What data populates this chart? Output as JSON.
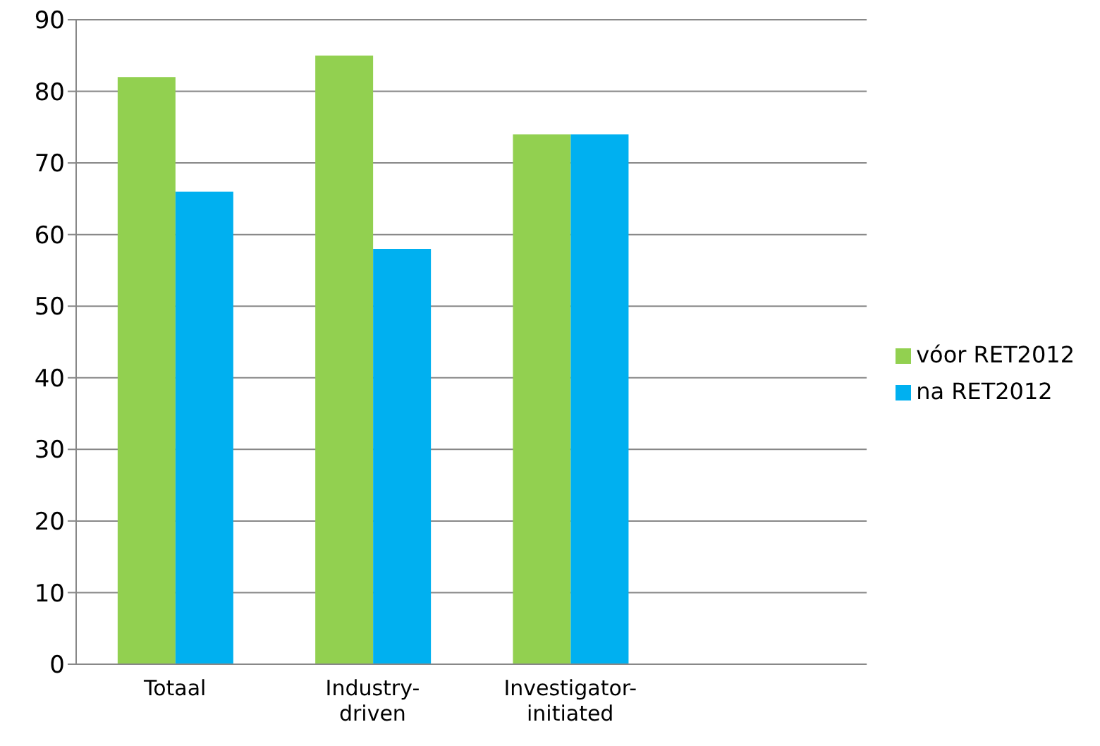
{
  "chart_data": {
    "type": "bar",
    "categories": [
      "Totaal",
      "Industry-driven",
      "Investigator-initiated",
      null
    ],
    "series": [
      {
        "name": "vóor RET2012",
        "color": "#92d050",
        "values": [
          82,
          85,
          74,
          null
        ]
      },
      {
        "name": "na RET2012",
        "color": "#00b0f0",
        "values": [
          66,
          58,
          74,
          null
        ]
      }
    ],
    "ylim": [
      0,
      90
    ],
    "yticks": [
      0,
      10,
      20,
      30,
      40,
      50,
      60,
      70,
      80,
      90
    ],
    "grid": "y",
    "legend": "right"
  }
}
